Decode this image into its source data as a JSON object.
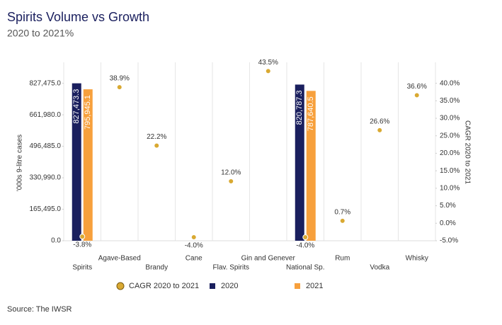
{
  "chart_data": {
    "type": "combo",
    "title": "Spirits Volume vs Growth",
    "subtitle": "2020 to 2021%",
    "y_label": "'000s 9-litre cases",
    "y2_label": "CAGR 2020 to 2021",
    "source": "Source: The IWSR",
    "categories": [
      "Spirits",
      "Agave-Based",
      "Brandy",
      "Cane",
      "Flav. Spirits",
      "Gin and Genever",
      "National Sp.",
      "Rum",
      "Vodka",
      "Whisky"
    ],
    "series": [
      {
        "name": "CAGR 2020 to 2021",
        "color": "#d9a932",
        "type": "scatter",
        "axis": "y2",
        "values": [
          -3.8,
          38.9,
          22.2,
          -4.0,
          12.0,
          43.5,
          -4.0,
          0.7,
          26.6,
          36.6
        ],
        "value_labels": [
          "-3.8%",
          "38.9%",
          "22.2%",
          "-4.0%",
          "12.0%",
          "43.5%",
          "-4.0%",
          "0.7%",
          "26.6%",
          "36.6%"
        ]
      },
      {
        "name": "2020",
        "color": "#1a1f5e",
        "type": "bar",
        "values": [
          827473.3,
          null,
          null,
          null,
          null,
          null,
          820787.3,
          null,
          null,
          null
        ],
        "value_labels": [
          "827,473.3",
          null,
          null,
          null,
          null,
          null,
          "820,787.3",
          null,
          null,
          null
        ]
      },
      {
        "name": "2021",
        "color": "#f7a03c",
        "type": "bar",
        "values": [
          795945.1,
          null,
          null,
          null,
          null,
          null,
          787640.5,
          null,
          null,
          null
        ],
        "value_labels": [
          "795,945.1",
          null,
          null,
          null,
          null,
          null,
          "787,640.5",
          null,
          null,
          null
        ]
      }
    ],
    "ylim": [
      0,
      937805
    ],
    "yticks": [
      {
        "value": 0,
        "label": "0.0"
      },
      {
        "value": 165495,
        "label": "165,495.0"
      },
      {
        "value": 330990,
        "label": "330,990.0"
      },
      {
        "value": 496485,
        "label": "496,485.0"
      },
      {
        "value": 661980,
        "label": "661,980.0"
      },
      {
        "value": 827475,
        "label": "827,475.0"
      }
    ],
    "y2lim": [
      -5,
      46
    ],
    "y2ticks": [
      {
        "value": -5,
        "label": "-5.0%"
      },
      {
        "value": 0,
        "label": "0.0%"
      },
      {
        "value": 5,
        "label": "5.0%"
      },
      {
        "value": 10,
        "label": "10.0%"
      },
      {
        "value": 15,
        "label": "15.0%"
      },
      {
        "value": 20,
        "label": "20.0%"
      },
      {
        "value": 25,
        "label": "25.0%"
      },
      {
        "value": 30,
        "label": "30.0%"
      },
      {
        "value": 35,
        "label": "35.0%"
      },
      {
        "value": 40,
        "label": "40.0%"
      }
    ]
  }
}
